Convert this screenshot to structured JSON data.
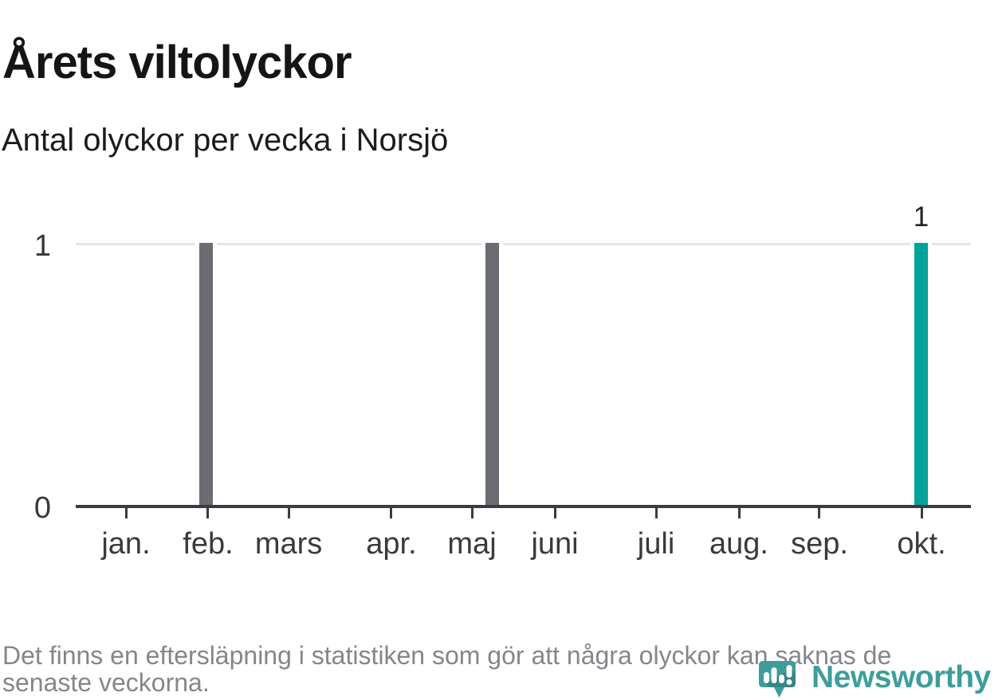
{
  "header": {
    "title": "Årets viltolyckor",
    "subtitle": "Antal olyckor per vecka i Norsjö"
  },
  "footer": {
    "lines": [
      "Det finns en eftersläpning i statistiken som gör att några olyckor kan saknas de",
      "senaste veckorna."
    ]
  },
  "brand": {
    "name": "Newsworthy",
    "icon": "newsworthy-speech-bubble-bar-chart-icon",
    "color": "#3D9E9B"
  },
  "colors": {
    "bar_default": "#6C6B71",
    "bar_highlight": "#00A39A",
    "axis": "#3B3B40",
    "gridline": "#E4E4E6",
    "title_text": "#151513",
    "footer_text": "#85858C",
    "background": "#FFFFFF"
  },
  "chart_data": {
    "type": "bar",
    "title": "Årets viltolyckor",
    "subtitle": "Antal olyckor per vecka i Norsjö",
    "x_unit": "week",
    "xlabel": "",
    "ylabel": "",
    "ylim": [
      0,
      1
    ],
    "y_ticks": [
      "0",
      "1"
    ],
    "grid": "horizontal gridline at y=1 only",
    "legend": "none",
    "x_ticks": [
      {
        "label": "jan.",
        "pos_pct": 5.61
      },
      {
        "label": "feb.",
        "pos_pct": 14.78
      },
      {
        "label": "mars",
        "pos_pct": 23.78
      },
      {
        "label": "apr.",
        "pos_pct": 35.26
      },
      {
        "label": "maj",
        "pos_pct": 44.26
      },
      {
        "label": "juni",
        "pos_pct": 53.52
      },
      {
        "label": "juli",
        "pos_pct": 64.83
      },
      {
        "label": "aug.",
        "pos_pct": 74.09
      },
      {
        "label": "sep.",
        "pos_pct": 83.08
      },
      {
        "label": "okt.",
        "pos_pct": 94.48
      }
    ],
    "bars": [
      {
        "week_of": "feb.",
        "value": 1,
        "pos_pct": 14.6,
        "color": "#6C6B71",
        "highlighted": false,
        "label": ""
      },
      {
        "week_of": "maj",
        "value": 1,
        "pos_pct": 46.57,
        "color": "#6C6B71",
        "highlighted": false,
        "label": ""
      },
      {
        "week_of": "okt.",
        "value": 1,
        "pos_pct": 94.43,
        "color": "#00A39A",
        "highlighted": true,
        "label": "1"
      }
    ]
  }
}
